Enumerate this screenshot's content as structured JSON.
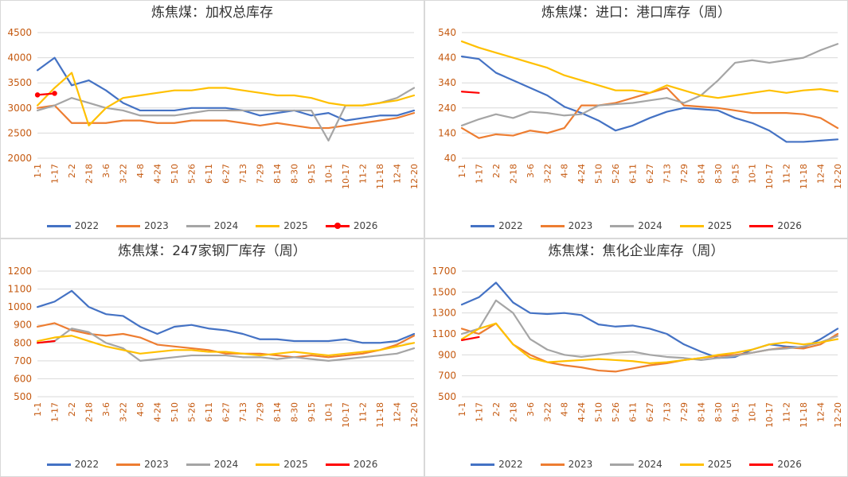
{
  "style": {
    "background": "#FFFFFF",
    "panel_border": "#D9D9D9",
    "grid_color": "#D9D9D9",
    "axis_label_color": "#C55A11",
    "title_color": "#333333",
    "legend_text_color": "#404040"
  },
  "chart_data": [
    {
      "type": "line",
      "title": "炼焦煤：加权总库存",
      "xlabel": "",
      "ylabel": "",
      "grid": true,
      "legend_position": "bottom",
      "ylim": [
        2000,
        4500
      ],
      "y_ticks": [
        2000,
        2500,
        3000,
        3500,
        4000,
        4500
      ],
      "categories": [
        "1-1",
        "1-17",
        "2-2",
        "2-18",
        "3-6",
        "3-22",
        "4-8",
        "4-24",
        "5-10",
        "5-26",
        "6-11",
        "6-27",
        "7-13",
        "7-29",
        "8-14",
        "8-30",
        "9-15",
        "10-1",
        "10-17",
        "11-2",
        "11-18",
        "12-4",
        "12-20"
      ],
      "series": [
        {
          "name": "2022",
          "color": "#4472C4",
          "values": [
            3750,
            4000,
            3450,
            3550,
            3350,
            3100,
            2950,
            2950,
            2950,
            3000,
            3000,
            3000,
            2950,
            2850,
            2900,
            2950,
            2850,
            2900,
            2750,
            2800,
            2850,
            2850,
            2950
          ]
        },
        {
          "name": "2023",
          "color": "#ED7D31",
          "values": [
            3000,
            3050,
            2700,
            2700,
            2700,
            2750,
            2750,
            2700,
            2700,
            2750,
            2750,
            2750,
            2700,
            2650,
            2700,
            2650,
            2600,
            2600,
            2650,
            2700,
            2750,
            2800,
            2900
          ]
        },
        {
          "name": "2024",
          "color": "#A5A5A5",
          "values": [
            2950,
            3050,
            3200,
            3100,
            3000,
            2950,
            2850,
            2850,
            2850,
            2900,
            2950,
            2950,
            2950,
            2950,
            2950,
            2950,
            2950,
            2350,
            3050,
            3050,
            3100,
            3200,
            3400
          ]
        },
        {
          "name": "2025",
          "color": "#FFC000",
          "values": [
            3050,
            3400,
            3700,
            2650,
            3000,
            3200,
            3250,
            3300,
            3350,
            3350,
            3400,
            3400,
            3350,
            3300,
            3250,
            3250,
            3200,
            3100,
            3050,
            3050,
            3100,
            3150,
            3250
          ]
        },
        {
          "name": "2026",
          "color": "#FF0000",
          "marker": true,
          "values": [
            3260,
            3290
          ]
        }
      ]
    },
    {
      "type": "line",
      "title": "炼焦煤：进口：港口库存（周）",
      "xlabel": "",
      "ylabel": "",
      "grid": true,
      "legend_position": "bottom",
      "ylim": [
        40,
        540
      ],
      "y_ticks": [
        40,
        140,
        240,
        340,
        440,
        540
      ],
      "categories": [
        "1-1",
        "1-17",
        "2-2",
        "2-18",
        "3-6",
        "3-22",
        "4-8",
        "4-24",
        "5-10",
        "5-26",
        "6-11",
        "6-27",
        "7-13",
        "7-29",
        "8-14",
        "8-30",
        "9-15",
        "10-1",
        "10-17",
        "11-2",
        "11-18",
        "12-4",
        "12-20"
      ],
      "series": [
        {
          "name": "2022",
          "color": "#4472C4",
          "values": [
            445,
            435,
            380,
            350,
            320,
            290,
            245,
            220,
            190,
            150,
            170,
            200,
            225,
            240,
            235,
            230,
            200,
            180,
            150,
            105,
            105,
            110,
            115
          ]
        },
        {
          "name": "2023",
          "color": "#ED7D31",
          "values": [
            160,
            120,
            135,
            130,
            150,
            140,
            160,
            250,
            250,
            260,
            280,
            300,
            320,
            250,
            245,
            240,
            230,
            220,
            220,
            220,
            215,
            200,
            160
          ]
        },
        {
          "name": "2024",
          "color": "#A5A5A5",
          "values": [
            170,
            195,
            215,
            200,
            225,
            220,
            210,
            215,
            250,
            255,
            260,
            270,
            280,
            260,
            290,
            350,
            420,
            430,
            420,
            430,
            440,
            470,
            495
          ]
        },
        {
          "name": "2025",
          "color": "#FFC000",
          "values": [
            505,
            480,
            460,
            440,
            420,
            400,
            370,
            350,
            330,
            310,
            310,
            300,
            330,
            310,
            290,
            280,
            290,
            300,
            310,
            300,
            310,
            315,
            305
          ]
        },
        {
          "name": "2026",
          "color": "#FF0000",
          "values": [
            305,
            300
          ]
        }
      ]
    },
    {
      "type": "line",
      "title": "炼焦煤：247家钢厂库存（周）",
      "xlabel": "",
      "ylabel": "",
      "grid": true,
      "legend_position": "bottom",
      "ylim": [
        500,
        1200
      ],
      "y_ticks": [
        500,
        600,
        700,
        800,
        900,
        1000,
        1100,
        1200
      ],
      "categories": [
        "1-1",
        "1-17",
        "2-2",
        "2-18",
        "3-6",
        "3-22",
        "4-8",
        "4-24",
        "5-10",
        "5-26",
        "6-11",
        "6-27",
        "7-13",
        "7-29",
        "8-14",
        "8-30",
        "9-15",
        "10-1",
        "10-17",
        "11-2",
        "11-18",
        "12-4",
        "12-20"
      ],
      "series": [
        {
          "name": "2022",
          "color": "#4472C4",
          "values": [
            1000,
            1030,
            1090,
            1000,
            960,
            950,
            890,
            850,
            890,
            900,
            880,
            870,
            850,
            820,
            820,
            810,
            810,
            810,
            820,
            800,
            800,
            810,
            850
          ]
        },
        {
          "name": "2023",
          "color": "#ED7D31",
          "values": [
            890,
            910,
            870,
            850,
            840,
            850,
            830,
            790,
            780,
            770,
            760,
            740,
            740,
            740,
            730,
            720,
            730,
            720,
            730,
            740,
            760,
            790,
            840
          ]
        },
        {
          "name": "2024",
          "color": "#A5A5A5",
          "values": [
            800,
            810,
            880,
            860,
            800,
            770,
            700,
            710,
            720,
            730,
            730,
            730,
            720,
            720,
            710,
            720,
            710,
            700,
            710,
            720,
            730,
            740,
            770
          ]
        },
        {
          "name": "2025",
          "color": "#FFC000",
          "values": [
            810,
            830,
            840,
            810,
            780,
            760,
            740,
            750,
            760,
            760,
            750,
            750,
            740,
            730,
            740,
            750,
            740,
            730,
            740,
            750,
            760,
            780,
            800
          ]
        },
        {
          "name": "2026",
          "color": "#FF0000",
          "values": [
            800,
            810
          ]
        }
      ]
    },
    {
      "type": "line",
      "title": "炼焦煤：焦化企业库存（周）",
      "xlabel": "",
      "ylabel": "",
      "grid": true,
      "legend_position": "bottom",
      "ylim": [
        500,
        1700
      ],
      "y_ticks": [
        500,
        700,
        900,
        1100,
        1300,
        1500,
        1700
      ],
      "categories": [
        "1-1",
        "1-17",
        "2-2",
        "2-18",
        "3-6",
        "3-22",
        "4-8",
        "4-24",
        "5-10",
        "5-26",
        "6-11",
        "6-27",
        "7-13",
        "7-29",
        "8-14",
        "8-30",
        "9-15",
        "10-1",
        "10-17",
        "11-2",
        "11-18",
        "12-4",
        "12-20"
      ],
      "series": [
        {
          "name": "2022",
          "color": "#4472C4",
          "values": [
            1380,
            1450,
            1590,
            1400,
            1300,
            1290,
            1300,
            1280,
            1190,
            1170,
            1180,
            1150,
            1100,
            1000,
            930,
            870,
            880,
            950,
            1000,
            980,
            970,
            1050,
            1150
          ]
        },
        {
          "name": "2023",
          "color": "#ED7D31",
          "values": [
            1150,
            1100,
            1200,
            1000,
            900,
            830,
            800,
            780,
            750,
            740,
            770,
            800,
            820,
            850,
            870,
            890,
            900,
            920,
            950,
            970,
            960,
            1000,
            1100
          ]
        },
        {
          "name": "2024",
          "color": "#A5A5A5",
          "values": [
            1100,
            1150,
            1420,
            1300,
            1050,
            950,
            900,
            880,
            900,
            920,
            930,
            900,
            880,
            870,
            850,
            870,
            890,
            920,
            950,
            960,
            980,
            1020,
            1080
          ]
        },
        {
          "name": "2025",
          "color": "#FFC000",
          "values": [
            1050,
            1150,
            1200,
            1000,
            870,
            830,
            840,
            850,
            860,
            850,
            840,
            820,
            830,
            850,
            870,
            900,
            920,
            950,
            1000,
            1020,
            1000,
            1020,
            1050
          ]
        },
        {
          "name": "2026",
          "color": "#FF0000",
          "values": [
            1040,
            1070
          ]
        }
      ]
    }
  ]
}
